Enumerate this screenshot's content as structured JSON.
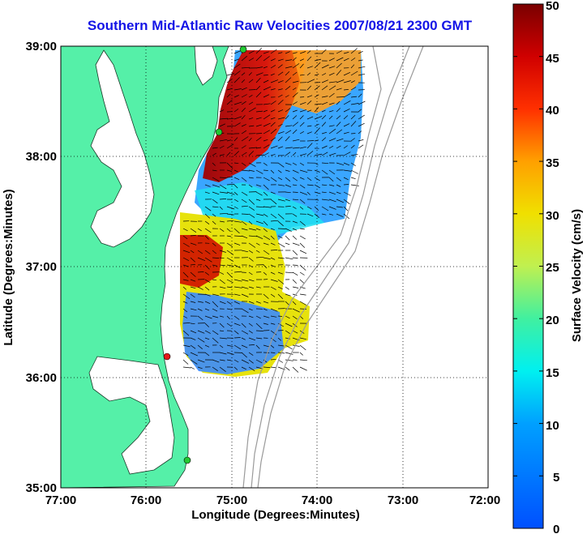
{
  "title": "Southern Mid-Atlantic Raw Velocities 2007/08/21 2300 GMT",
  "x_axis": {
    "label": "Longitude (Degrees:Minutes)",
    "ticks": [
      "77:00",
      "76:00",
      "75:00",
      "74:00",
      "73:00",
      "72:00"
    ]
  },
  "y_axis": {
    "label": "Latitude (Degrees:Minutes)",
    "ticks": [
      "39:00",
      "38:00",
      "37:00",
      "36:00",
      "35:00"
    ]
  },
  "colorbar": {
    "label": "Surface Velocity (cm/s)",
    "ticks": [
      "50",
      "45",
      "40",
      "35",
      "30",
      "25",
      "20",
      "15",
      "10",
      "5",
      "0"
    ],
    "range": [
      0,
      50
    ]
  },
  "colors": {
    "land": "#55f0a8",
    "water": "#ffffff",
    "title": "#1414e6",
    "bathymetry": "#9a9a9a",
    "station_green": "#22c832",
    "station_red": "#e61919"
  }
}
